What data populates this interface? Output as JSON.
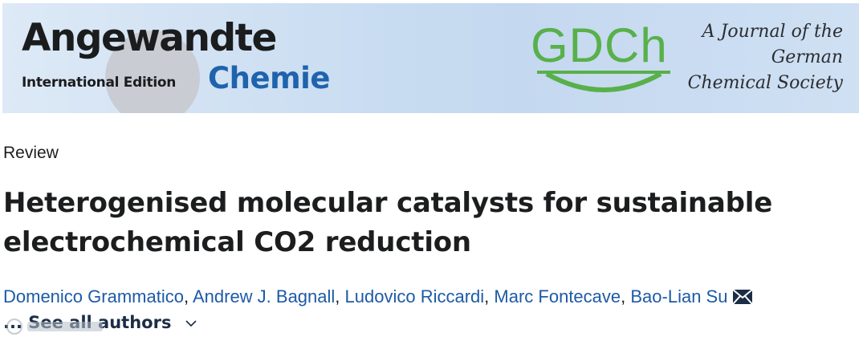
{
  "banner": {
    "logo_line1": "Angewandte",
    "logo_line2": "International Edition",
    "logo_line3": "Chemie",
    "society_logo": "GDCh",
    "tagline": [
      "A Journal of the",
      "German",
      "Chemical Society"
    ],
    "colors": {
      "chemie_blue": "#1f63ad",
      "gdch_green": "#58b04a",
      "banner_bg": "#c8dcf1"
    }
  },
  "article": {
    "type": "Review",
    "title": "Heterogenised molecular catalysts for sustainable electrochemical CO2 reduction",
    "authors": [
      "Domenico Grammatico",
      "Andrew J. Bagnall",
      "Ludovico Riccardi",
      "Marc Fontecave",
      "Bao-Lian Su"
    ],
    "separator": ", ",
    "ellipsis": "...",
    "see_all_label": "See all authors",
    "icons": {
      "email": "envelope-icon",
      "expand": "chevron-down-icon"
    },
    "link_color": "#1d5aa6"
  }
}
